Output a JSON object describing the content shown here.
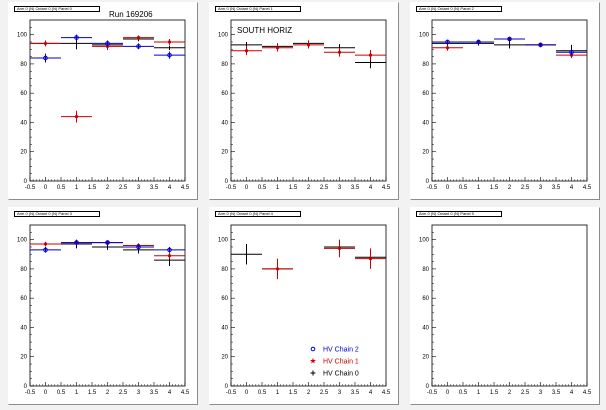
{
  "figure": {
    "run_label": "Run 169206",
    "south_label": "SOUTH HORIZ"
  },
  "legend": {
    "entries": [
      {
        "name": "HV Chain 2",
        "color": "#0000cc",
        "marker": "circle"
      },
      {
        "name": "HV Chain 1",
        "color": "#cc0000",
        "marker": "star"
      },
      {
        "name": "HV Chain 0",
        "color": "#000000",
        "marker": "cross"
      }
    ]
  },
  "chart_data": [
    {
      "type": "scatter",
      "title": "Arm 0 (N) Octant 0 (N) Panel 0",
      "xlim": [
        -0.5,
        4.5
      ],
      "ylim": [
        0,
        110
      ],
      "xticks": [
        "-0.5",
        "0",
        "0.5",
        "1",
        "1.5",
        "2",
        "2.5",
        "3",
        "3.5",
        "4",
        "4.5"
      ],
      "yticks": [
        "0",
        "20",
        "40",
        "60",
        "80",
        "100"
      ],
      "series": [
        {
          "color": "#000000",
          "points": [
            [
              0,
              94,
              1.5
            ],
            [
              1,
              94,
              4
            ],
            [
              2,
              93,
              1.5
            ],
            [
              3,
              97,
              1.5
            ],
            [
              4,
              91,
              1.5
            ]
          ]
        },
        {
          "color": "#cc0000",
          "points": [
            [
              0,
              94,
              2
            ],
            [
              1,
              44,
              4
            ],
            [
              2,
              92,
              2.5
            ],
            [
              3,
              98,
              1.5
            ],
            [
              4,
              95,
              2
            ]
          ]
        },
        {
          "color": "#0000cc",
          "points": [
            [
              0,
              84,
              3
            ],
            [
              1,
              98,
              2
            ],
            [
              2,
              94,
              2
            ],
            [
              3,
              92,
              2
            ],
            [
              4,
              86,
              2.5
            ]
          ]
        }
      ]
    },
    {
      "type": "scatter",
      "title": "Arm 0 (N) Octant 0 (N) Panel 1",
      "xlim": [
        -0.5,
        4.5
      ],
      "ylim": [
        0,
        110
      ],
      "xticks": [
        "-0.5",
        "0",
        "0.5",
        "1",
        "1.5",
        "2",
        "2.5",
        "3",
        "3.5",
        "4",
        "4.5"
      ],
      "yticks": [
        "0",
        "20",
        "40",
        "60",
        "80",
        "100"
      ],
      "series": [
        {
          "color": "#000000",
          "points": [
            [
              0,
              93,
              2
            ],
            [
              1,
              92,
              2
            ],
            [
              2,
              94,
              2
            ],
            [
              3,
              91,
              2.5
            ],
            [
              4,
              81,
              4
            ]
          ]
        },
        {
          "color": "#cc0000",
          "points": [
            [
              0,
              89,
              3
            ],
            [
              1,
              91,
              2.5
            ],
            [
              2,
              93,
              2.5
            ],
            [
              3,
              88,
              3
            ],
            [
              4,
              86,
              3.5
            ]
          ]
        }
      ]
    },
    {
      "type": "scatter",
      "title": "Arm 0 (N) Octant 0 (N) Panel 2",
      "xlim": [
        -0.5,
        4.5
      ],
      "ylim": [
        0,
        110
      ],
      "xticks": [
        "-0.5",
        "0",
        "0.5",
        "1",
        "1.5",
        "2",
        "2.5",
        "3",
        "3.5",
        "4",
        "4.5"
      ],
      "yticks": [
        "0",
        "20",
        "40",
        "60",
        "80",
        "100"
      ],
      "series": [
        {
          "color": "#000000",
          "points": [
            [
              0,
              94,
              1.5
            ],
            [
              1,
              94,
              1.5
            ],
            [
              2,
              93,
              2.5
            ],
            [
              3,
              93,
              1.5
            ],
            [
              4,
              89,
              4
            ]
          ]
        },
        {
          "color": "#cc0000",
          "points": [
            [
              0,
              91,
              2
            ],
            [
              1,
              95,
              1.5
            ],
            [
              2,
              97,
              1.5
            ],
            [
              3,
              93,
              1.5
            ],
            [
              4,
              86,
              2
            ]
          ]
        },
        {
          "color": "#0000cc",
          "points": [
            [
              0,
              95,
              1.5
            ],
            [
              1,
              95,
              1.5
            ],
            [
              2,
              97,
              1.5
            ],
            [
              3,
              93,
              1.5
            ],
            [
              4,
              88,
              2
            ]
          ]
        }
      ]
    },
    {
      "type": "scatter",
      "title": "Arm 0 (N) Octant 0 (N) Panel 3",
      "xlim": [
        -0.5,
        4.5
      ],
      "ylim": [
        0,
        110
      ],
      "xticks": [
        "-0.5",
        "0",
        "0.5",
        "1",
        "1.5",
        "2",
        "2.5",
        "3",
        "3.5",
        "4",
        "4.5"
      ],
      "yticks": [
        "0",
        "20",
        "40",
        "60",
        "80",
        "100"
      ],
      "series": [
        {
          "color": "#000000",
          "points": [
            [
              0,
              97,
              1.5
            ],
            [
              1,
              97,
              3
            ],
            [
              2,
              95,
              2
            ],
            [
              3,
              93,
              2.5
            ],
            [
              4,
              86,
              4
            ]
          ]
        },
        {
          "color": "#cc0000",
          "points": [
            [
              0,
              97,
              1.5
            ],
            [
              1,
              98,
              1.5
            ],
            [
              2,
              98,
              1.5
            ],
            [
              3,
              96,
              1.5
            ],
            [
              4,
              89,
              2
            ]
          ]
        },
        {
          "color": "#0000cc",
          "points": [
            [
              0,
              93,
              2
            ],
            [
              1,
              98,
              1.5
            ],
            [
              2,
              98,
              1.5
            ],
            [
              3,
              95,
              2
            ],
            [
              4,
              93,
              2
            ]
          ]
        }
      ]
    },
    {
      "type": "scatter",
      "title": "Arm 0 (N) Octant 0 (N) Panel 4",
      "xlim": [
        -0.5,
        4.5
      ],
      "ylim": [
        0,
        110
      ],
      "xticks": [
        "-0.5",
        "0",
        "0.5",
        "1",
        "1.5",
        "2",
        "2.5",
        "3",
        "3.5",
        "4",
        "4.5"
      ],
      "yticks": [
        "0",
        "20",
        "40",
        "60",
        "80",
        "100"
      ],
      "series": [
        {
          "color": "#000000",
          "points": [
            [
              0,
              90,
              7
            ],
            [
              1,
              80,
              1
            ],
            [
              3,
              95,
              1
            ],
            [
              4,
              88,
              1
            ]
          ]
        },
        {
          "color": "#cc0000",
          "points": [
            [
              1,
              80,
              7
            ],
            [
              3,
              94,
              6
            ],
            [
              4,
              87,
              7
            ]
          ]
        }
      ]
    },
    {
      "type": "scatter",
      "title": "Arm 0 (N) Octant 0 (N) Panel 5",
      "xlim": [
        -0.5,
        4.5
      ],
      "ylim": [
        0,
        110
      ],
      "xticks": [
        "-0.5",
        "0",
        "0.5",
        "1",
        "1.5",
        "2",
        "2.5",
        "3",
        "3.5",
        "4",
        "4.5"
      ],
      "yticks": [
        "0",
        "20",
        "40",
        "60",
        "80",
        "100"
      ],
      "series": []
    }
  ]
}
